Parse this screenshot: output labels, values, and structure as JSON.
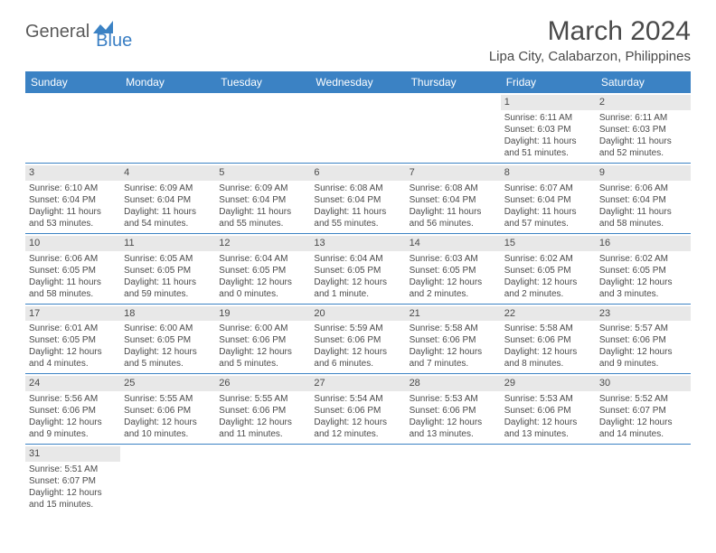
{
  "logo": {
    "text_main": "General",
    "text_sub": "Blue",
    "icon_color": "#3b82c4"
  },
  "header": {
    "month_title": "March 2024",
    "location": "Lipa City, Calabarzon, Philippines"
  },
  "day_headers": [
    "Sunday",
    "Monday",
    "Tuesday",
    "Wednesday",
    "Thursday",
    "Friday",
    "Saturday"
  ],
  "colors": {
    "header_bg": "#3b82c4",
    "header_text": "#ffffff",
    "text": "#4a4a4a",
    "daynum_bg": "#e8e8e8",
    "row_border": "#3b82c4"
  },
  "weeks": [
    [
      {
        "empty": true
      },
      {
        "empty": true
      },
      {
        "empty": true
      },
      {
        "empty": true
      },
      {
        "empty": true
      },
      {
        "day": "1",
        "sunrise": "Sunrise: 6:11 AM",
        "sunset": "Sunset: 6:03 PM",
        "daylight": "Daylight: 11 hours and 51 minutes."
      },
      {
        "day": "2",
        "sunrise": "Sunrise: 6:11 AM",
        "sunset": "Sunset: 6:03 PM",
        "daylight": "Daylight: 11 hours and 52 minutes."
      }
    ],
    [
      {
        "day": "3",
        "sunrise": "Sunrise: 6:10 AM",
        "sunset": "Sunset: 6:04 PM",
        "daylight": "Daylight: 11 hours and 53 minutes."
      },
      {
        "day": "4",
        "sunrise": "Sunrise: 6:09 AM",
        "sunset": "Sunset: 6:04 PM",
        "daylight": "Daylight: 11 hours and 54 minutes."
      },
      {
        "day": "5",
        "sunrise": "Sunrise: 6:09 AM",
        "sunset": "Sunset: 6:04 PM",
        "daylight": "Daylight: 11 hours and 55 minutes."
      },
      {
        "day": "6",
        "sunrise": "Sunrise: 6:08 AM",
        "sunset": "Sunset: 6:04 PM",
        "daylight": "Daylight: 11 hours and 55 minutes."
      },
      {
        "day": "7",
        "sunrise": "Sunrise: 6:08 AM",
        "sunset": "Sunset: 6:04 PM",
        "daylight": "Daylight: 11 hours and 56 minutes."
      },
      {
        "day": "8",
        "sunrise": "Sunrise: 6:07 AM",
        "sunset": "Sunset: 6:04 PM",
        "daylight": "Daylight: 11 hours and 57 minutes."
      },
      {
        "day": "9",
        "sunrise": "Sunrise: 6:06 AM",
        "sunset": "Sunset: 6:04 PM",
        "daylight": "Daylight: 11 hours and 58 minutes."
      }
    ],
    [
      {
        "day": "10",
        "sunrise": "Sunrise: 6:06 AM",
        "sunset": "Sunset: 6:05 PM",
        "daylight": "Daylight: 11 hours and 58 minutes."
      },
      {
        "day": "11",
        "sunrise": "Sunrise: 6:05 AM",
        "sunset": "Sunset: 6:05 PM",
        "daylight": "Daylight: 11 hours and 59 minutes."
      },
      {
        "day": "12",
        "sunrise": "Sunrise: 6:04 AM",
        "sunset": "Sunset: 6:05 PM",
        "daylight": "Daylight: 12 hours and 0 minutes."
      },
      {
        "day": "13",
        "sunrise": "Sunrise: 6:04 AM",
        "sunset": "Sunset: 6:05 PM",
        "daylight": "Daylight: 12 hours and 1 minute."
      },
      {
        "day": "14",
        "sunrise": "Sunrise: 6:03 AM",
        "sunset": "Sunset: 6:05 PM",
        "daylight": "Daylight: 12 hours and 2 minutes."
      },
      {
        "day": "15",
        "sunrise": "Sunrise: 6:02 AM",
        "sunset": "Sunset: 6:05 PM",
        "daylight": "Daylight: 12 hours and 2 minutes."
      },
      {
        "day": "16",
        "sunrise": "Sunrise: 6:02 AM",
        "sunset": "Sunset: 6:05 PM",
        "daylight": "Daylight: 12 hours and 3 minutes."
      }
    ],
    [
      {
        "day": "17",
        "sunrise": "Sunrise: 6:01 AM",
        "sunset": "Sunset: 6:05 PM",
        "daylight": "Daylight: 12 hours and 4 minutes."
      },
      {
        "day": "18",
        "sunrise": "Sunrise: 6:00 AM",
        "sunset": "Sunset: 6:05 PM",
        "daylight": "Daylight: 12 hours and 5 minutes."
      },
      {
        "day": "19",
        "sunrise": "Sunrise: 6:00 AM",
        "sunset": "Sunset: 6:06 PM",
        "daylight": "Daylight: 12 hours and 5 minutes."
      },
      {
        "day": "20",
        "sunrise": "Sunrise: 5:59 AM",
        "sunset": "Sunset: 6:06 PM",
        "daylight": "Daylight: 12 hours and 6 minutes."
      },
      {
        "day": "21",
        "sunrise": "Sunrise: 5:58 AM",
        "sunset": "Sunset: 6:06 PM",
        "daylight": "Daylight: 12 hours and 7 minutes."
      },
      {
        "day": "22",
        "sunrise": "Sunrise: 5:58 AM",
        "sunset": "Sunset: 6:06 PM",
        "daylight": "Daylight: 12 hours and 8 minutes."
      },
      {
        "day": "23",
        "sunrise": "Sunrise: 5:57 AM",
        "sunset": "Sunset: 6:06 PM",
        "daylight": "Daylight: 12 hours and 9 minutes."
      }
    ],
    [
      {
        "day": "24",
        "sunrise": "Sunrise: 5:56 AM",
        "sunset": "Sunset: 6:06 PM",
        "daylight": "Daylight: 12 hours and 9 minutes."
      },
      {
        "day": "25",
        "sunrise": "Sunrise: 5:55 AM",
        "sunset": "Sunset: 6:06 PM",
        "daylight": "Daylight: 12 hours and 10 minutes."
      },
      {
        "day": "26",
        "sunrise": "Sunrise: 5:55 AM",
        "sunset": "Sunset: 6:06 PM",
        "daylight": "Daylight: 12 hours and 11 minutes."
      },
      {
        "day": "27",
        "sunrise": "Sunrise: 5:54 AM",
        "sunset": "Sunset: 6:06 PM",
        "daylight": "Daylight: 12 hours and 12 minutes."
      },
      {
        "day": "28",
        "sunrise": "Sunrise: 5:53 AM",
        "sunset": "Sunset: 6:06 PM",
        "daylight": "Daylight: 12 hours and 13 minutes."
      },
      {
        "day": "29",
        "sunrise": "Sunrise: 5:53 AM",
        "sunset": "Sunset: 6:06 PM",
        "daylight": "Daylight: 12 hours and 13 minutes."
      },
      {
        "day": "30",
        "sunrise": "Sunrise: 5:52 AM",
        "sunset": "Sunset: 6:07 PM",
        "daylight": "Daylight: 12 hours and 14 minutes."
      }
    ],
    [
      {
        "day": "31",
        "sunrise": "Sunrise: 5:51 AM",
        "sunset": "Sunset: 6:07 PM",
        "daylight": "Daylight: 12 hours and 15 minutes."
      },
      {
        "empty": true
      },
      {
        "empty": true
      },
      {
        "empty": true
      },
      {
        "empty": true
      },
      {
        "empty": true
      },
      {
        "empty": true
      }
    ]
  ]
}
